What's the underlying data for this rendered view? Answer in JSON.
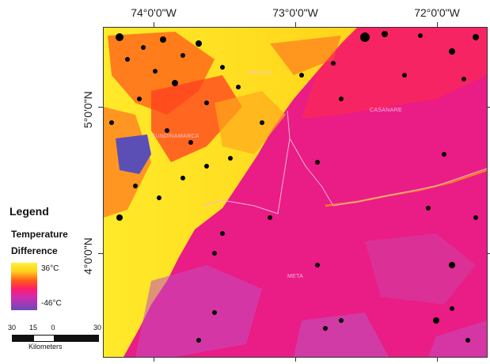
{
  "map": {
    "longitude_labels": [
      "74°0'0\"W",
      "73°0'0\"W",
      "72°0'0\"W"
    ],
    "latitude_labels": [
      "5°0'0\"N",
      "4°0'0\"N"
    ],
    "places": [
      "BOYACA",
      "CUNDINAMARCA",
      "CASANARE",
      "META"
    ]
  },
  "legend": {
    "title": "Legend",
    "variable_line1": "Temperature",
    "variable_line2": "Difference",
    "max_label": "36°C",
    "min_label": "-46°C",
    "colors": [
      "#fff13a",
      "#ffd21c",
      "#ff5a1a",
      "#ff1c6a",
      "#d22bb0",
      "#6e49b8"
    ]
  },
  "scale": {
    "ticks": [
      "30",
      "15",
      "0",
      "30"
    ],
    "unit": "Kilometers"
  }
}
